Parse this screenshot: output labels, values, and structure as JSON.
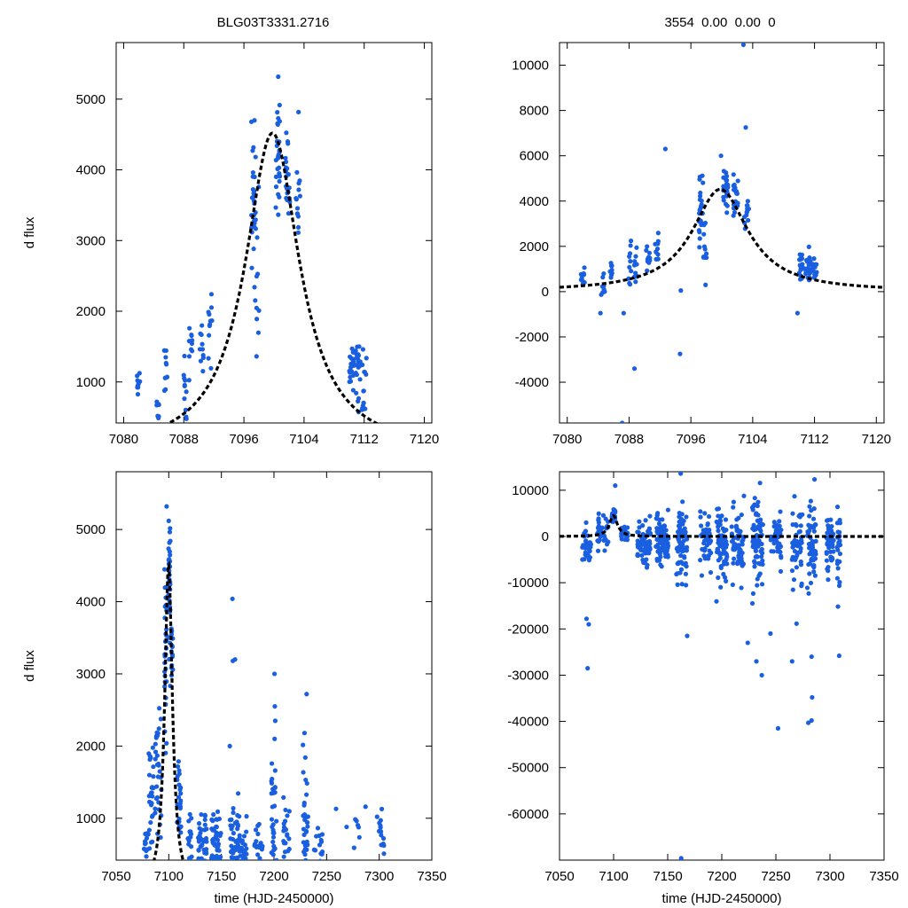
{
  "figure": {
    "title_left": "BLG03T3331.2716",
    "title_right": "3554  0.00  0.00  0"
  },
  "chart_data": [
    {
      "id": "top-left",
      "type": "scatter",
      "title": "BLG03T3331.2716",
      "xlabel": "",
      "ylabel": "d flux",
      "xlim": [
        7079,
        7121
      ],
      "ylim": [
        420,
        5800
      ],
      "xticks": [
        7080,
        7088,
        7096,
        7104,
        7112,
        7120
      ],
      "yticks": [
        1000,
        2000,
        3000,
        4000,
        5000
      ],
      "point_color": "#1a5fe0",
      "model": {
        "t0": 7099.8,
        "amp": 4520,
        "width": 4.4,
        "base": 0,
        "line": "dashed",
        "color": "#000000"
      },
      "points_seed": 1,
      "clusters": [
        {
          "x": 7082.0,
          "spread": 0.25,
          "n": 10,
          "mean": 900,
          "sd": 200
        },
        {
          "x": 7084.6,
          "spread": 0.25,
          "n": 8,
          "mean": 600,
          "sd": 160
        },
        {
          "x": 7085.6,
          "spread": 0.2,
          "n": 10,
          "mean": 1200,
          "sd": 320
        },
        {
          "x": 7088.1,
          "spread": 0.25,
          "n": 12,
          "mean": 1100,
          "sd": 400
        },
        {
          "x": 7088.9,
          "spread": 0.25,
          "n": 10,
          "mean": 1600,
          "sd": 250
        },
        {
          "x": 7090.4,
          "spread": 0.3,
          "n": 10,
          "mean": 1500,
          "sd": 250
        },
        {
          "x": 7091.5,
          "spread": 0.3,
          "n": 12,
          "mean": 1800,
          "sd": 320
        },
        {
          "x": 7097.3,
          "spread": 0.3,
          "n": 30,
          "mean": 3500,
          "sd": 600
        },
        {
          "x": 7097.8,
          "spread": 0.25,
          "n": 10,
          "mean": 2300,
          "sd": 800
        },
        {
          "x": 7100.5,
          "spread": 0.3,
          "n": 30,
          "mean": 4300,
          "sd": 450
        },
        {
          "x": 7101.8,
          "spread": 0.3,
          "n": 22,
          "mean": 4000,
          "sd": 350
        },
        {
          "x": 7103.2,
          "spread": 0.3,
          "n": 14,
          "mean": 3400,
          "sd": 400
        },
        {
          "x": 7110.3,
          "spread": 0.3,
          "n": 22,
          "mean": 1250,
          "sd": 220
        },
        {
          "x": 7111.2,
          "spread": 0.35,
          "n": 22,
          "mean": 1150,
          "sd": 280
        },
        {
          "x": 7112.0,
          "spread": 0.3,
          "n": 16,
          "mean": 950,
          "sd": 300
        }
      ]
    },
    {
      "id": "top-right",
      "type": "scatter",
      "title": "3554  0.00  0.00  0",
      "xlabel": "",
      "ylabel": "",
      "xlim": [
        7079,
        7121
      ],
      "ylim": [
        -5800,
        11000
      ],
      "xticks": [
        7080,
        7088,
        7096,
        7104,
        7112,
        7120
      ],
      "yticks": [
        -4000,
        -2000,
        0,
        2000,
        4000,
        6000,
        8000,
        10000
      ],
      "point_color": "#1a5fe0",
      "model": {
        "t0": 7099.8,
        "amp": 4520,
        "width": 4.4,
        "base": 0,
        "line": "dashed",
        "color": "#000000"
      },
      "points_seed": 2,
      "clusters": [
        {
          "x": 7082.0,
          "spread": 0.25,
          "n": 10,
          "mean": 700,
          "sd": 280
        },
        {
          "x": 7084.6,
          "spread": 0.25,
          "n": 10,
          "mean": 300,
          "sd": 450
        },
        {
          "x": 7085.6,
          "spread": 0.2,
          "n": 8,
          "mean": 1000,
          "sd": 450
        },
        {
          "x": 7088.1,
          "spread": 0.25,
          "n": 10,
          "mean": 900,
          "sd": 600
        },
        {
          "x": 7088.9,
          "spread": 0.25,
          "n": 10,
          "mean": 1200,
          "sd": 500
        },
        {
          "x": 7090.4,
          "spread": 0.3,
          "n": 10,
          "mean": 1400,
          "sd": 350
        },
        {
          "x": 7091.5,
          "spread": 0.3,
          "n": 10,
          "mean": 1900,
          "sd": 350
        },
        {
          "x": 7097.3,
          "spread": 0.3,
          "n": 26,
          "mean": 3400,
          "sd": 700
        },
        {
          "x": 7097.8,
          "spread": 0.25,
          "n": 10,
          "mean": 1600,
          "sd": 700
        },
        {
          "x": 7100.5,
          "spread": 0.3,
          "n": 28,
          "mean": 4400,
          "sd": 450
        },
        {
          "x": 7101.8,
          "spread": 0.3,
          "n": 20,
          "mean": 4100,
          "sd": 350
        },
        {
          "x": 7103.2,
          "spread": 0.3,
          "n": 12,
          "mean": 3500,
          "sd": 350
        },
        {
          "x": 7110.3,
          "spread": 0.3,
          "n": 20,
          "mean": 1100,
          "sd": 400
        },
        {
          "x": 7111.2,
          "spread": 0.35,
          "n": 20,
          "mean": 1100,
          "sd": 300
        },
        {
          "x": 7112.0,
          "spread": 0.3,
          "n": 14,
          "mean": 950,
          "sd": 300
        }
      ],
      "outliers": [
        {
          "x": 7102.8,
          "y": 10900
        },
        {
          "x": 7103.1,
          "y": 7250
        },
        {
          "x": 7092.7,
          "y": 6300
        },
        {
          "x": 7099.9,
          "y": 6000
        },
        {
          "x": 7088.7,
          "y": -3400
        },
        {
          "x": 7094.6,
          "y": -2750
        },
        {
          "x": 7087.1,
          "y": -5800
        },
        {
          "x": 7084.3,
          "y": -950
        },
        {
          "x": 7087.3,
          "y": -950
        },
        {
          "x": 7109.8,
          "y": -950
        },
        {
          "x": 7094.7,
          "y": 50
        },
        {
          "x": 7097.9,
          "y": 300
        }
      ]
    },
    {
      "id": "bottom-left",
      "type": "scatter",
      "title": "",
      "xlabel": "time (HJD-2450000)",
      "ylabel": "d flux",
      "xlim": [
        7050,
        7350
      ],
      "ylim": [
        420,
        5800
      ],
      "xticks": [
        7050,
        7100,
        7150,
        7200,
        7250,
        7300,
        7350
      ],
      "yticks": [
        1000,
        2000,
        3000,
        4000,
        5000
      ],
      "point_color": "#1a5fe0",
      "model": {
        "t0": 7099.8,
        "amp": 4520,
        "width": 4.4,
        "base": 0,
        "line": "dashed",
        "color": "#000000"
      },
      "points_seed": 3,
      "clusters": [
        {
          "x": 7078,
          "spread": 1.5,
          "n": 12,
          "mean": 650,
          "sd": 200
        },
        {
          "x": 7083,
          "spread": 2.5,
          "n": 30,
          "mean": 1300,
          "sd": 500
        },
        {
          "x": 7090,
          "spread": 3.0,
          "n": 30,
          "mean": 1700,
          "sd": 500
        },
        {
          "x": 7097,
          "spread": 1.0,
          "n": 30,
          "mean": 3400,
          "sd": 800
        },
        {
          "x": 7100.5,
          "spread": 1.0,
          "n": 35,
          "mean": 4300,
          "sd": 500
        },
        {
          "x": 7103,
          "spread": 1.0,
          "n": 14,
          "mean": 3400,
          "sd": 400
        },
        {
          "x": 7110,
          "spread": 2.0,
          "n": 28,
          "mean": 1200,
          "sd": 350
        },
        {
          "x": 7120,
          "spread": 2.0,
          "n": 18,
          "mean": 700,
          "sd": 250
        },
        {
          "x": 7132,
          "spread": 4.0,
          "n": 35,
          "mean": 650,
          "sd": 200
        },
        {
          "x": 7145,
          "spread": 4.5,
          "n": 50,
          "mean": 700,
          "sd": 220
        },
        {
          "x": 7162,
          "spread": 4.0,
          "n": 40,
          "mean": 650,
          "sd": 250
        },
        {
          "x": 7170,
          "spread": 4.0,
          "n": 30,
          "mean": 600,
          "sd": 180
        },
        {
          "x": 7185,
          "spread": 4.0,
          "n": 20,
          "mean": 600,
          "sd": 150
        },
        {
          "x": 7200,
          "spread": 2.5,
          "n": 35,
          "mean": 850,
          "sd": 500
        },
        {
          "x": 7212,
          "spread": 3.0,
          "n": 22,
          "mean": 750,
          "sd": 300
        },
        {
          "x": 7230,
          "spread": 2.5,
          "n": 35,
          "mean": 850,
          "sd": 450
        },
        {
          "x": 7242,
          "spread": 4.0,
          "n": 14,
          "mean": 650,
          "sd": 200
        },
        {
          "x": 7280,
          "spread": 4.0,
          "n": 6,
          "mean": 800,
          "sd": 250
        },
        {
          "x": 7302,
          "spread": 2.5,
          "n": 14,
          "mean": 700,
          "sd": 200
        }
      ],
      "outliers": [
        {
          "x": 7160.5,
          "y": 4040
        },
        {
          "x": 7160.9,
          "y": 3180
        },
        {
          "x": 7163.0,
          "y": 3200
        },
        {
          "x": 7200.5,
          "y": 3000
        },
        {
          "x": 7200.8,
          "y": 2550
        },
        {
          "x": 7201.2,
          "y": 2350
        },
        {
          "x": 7200.6,
          "y": 2100
        },
        {
          "x": 7229.0,
          "y": 2180
        },
        {
          "x": 7231.0,
          "y": 2720
        },
        {
          "x": 7158.0,
          "y": 2000
        },
        {
          "x": 7287.0,
          "y": 1160
        },
        {
          "x": 7298.0,
          "y": 1020
        },
        {
          "x": 7259.0,
          "y": 1130
        },
        {
          "x": 7269.0,
          "y": 880
        }
      ]
    },
    {
      "id": "bottom-right",
      "type": "scatter",
      "title": "",
      "xlabel": "time (HJD-2450000)",
      "ylabel": "",
      "xlim": [
        7050,
        7350
      ],
      "ylim": [
        -70000,
        14000
      ],
      "xticks": [
        7050,
        7100,
        7150,
        7200,
        7250,
        7300,
        7350
      ],
      "yticks": [
        -60000,
        -50000,
        -40000,
        -30000,
        -20000,
        -10000,
        0,
        10000
      ],
      "point_color": "#1a5fe0",
      "model": {
        "t0": 7099.8,
        "amp": 4520,
        "width": 4.4,
        "base": 0,
        "line": "dashed",
        "color": "#000000"
      },
      "points_seed": 4,
      "clusters": [
        {
          "x": 7075,
          "spread": 4.0,
          "n": 35,
          "mean": -1200,
          "sd": 2500
        },
        {
          "x": 7090,
          "spread": 5.0,
          "n": 35,
          "mean": 1500,
          "sd": 1800
        },
        {
          "x": 7100,
          "spread": 1.5,
          "n": 35,
          "mean": 4300,
          "sd": 800
        },
        {
          "x": 7110,
          "spread": 3.0,
          "n": 25,
          "mean": 600,
          "sd": 800
        },
        {
          "x": 7128,
          "spread": 6.0,
          "n": 60,
          "mean": -800,
          "sd": 2200
        },
        {
          "x": 7145,
          "spread": 6.0,
          "n": 80,
          "mean": -600,
          "sd": 2600
        },
        {
          "x": 7163,
          "spread": 5.0,
          "n": 70,
          "mean": -1500,
          "sd": 3800
        },
        {
          "x": 7185,
          "spread": 5.0,
          "n": 50,
          "mean": -1200,
          "sd": 2800
        },
        {
          "x": 7200,
          "spread": 5.0,
          "n": 70,
          "mean": -1800,
          "sd": 4200
        },
        {
          "x": 7215,
          "spread": 6.0,
          "n": 60,
          "mean": -1500,
          "sd": 3500
        },
        {
          "x": 7233,
          "spread": 5.0,
          "n": 70,
          "mean": -1800,
          "sd": 4500
        },
        {
          "x": 7250,
          "spread": 5.0,
          "n": 40,
          "mean": -1000,
          "sd": 3200
        },
        {
          "x": 7270,
          "spread": 5.0,
          "n": 50,
          "mean": -2000,
          "sd": 4500
        },
        {
          "x": 7283,
          "spread": 4.0,
          "n": 55,
          "mean": -2500,
          "sd": 5000
        },
        {
          "x": 7300,
          "spread": 3.5,
          "n": 45,
          "mean": -1500,
          "sd": 3500
        },
        {
          "x": 7308,
          "spread": 1.5,
          "n": 25,
          "mean": -4000,
          "sd": 5500
        }
      ],
      "outliers": [
        {
          "x": 7162.0,
          "y": 13600
        },
        {
          "x": 7162.5,
          "y": -69600
        },
        {
          "x": 7252.0,
          "y": -41500
        },
        {
          "x": 7283.0,
          "y": -39800
        },
        {
          "x": 7280.0,
          "y": -40300
        },
        {
          "x": 7283.5,
          "y": -34800
        },
        {
          "x": 7076.0,
          "y": -28500
        },
        {
          "x": 7237.0,
          "y": -30000
        },
        {
          "x": 7224.0,
          "y": -23000
        },
        {
          "x": 7075.0,
          "y": -17800
        },
        {
          "x": 7077.0,
          "y": -19000
        },
        {
          "x": 7101.5,
          "y": 11000
        },
        {
          "x": 7168.0,
          "y": -21500
        },
        {
          "x": 7283.0,
          "y": -26000
        },
        {
          "x": 7308.5,
          "y": -25800
        },
        {
          "x": 7245.0,
          "y": -21000
        },
        {
          "x": 7232.0,
          "y": -27000
        },
        {
          "x": 7265.0,
          "y": -27000
        }
      ]
    }
  ]
}
